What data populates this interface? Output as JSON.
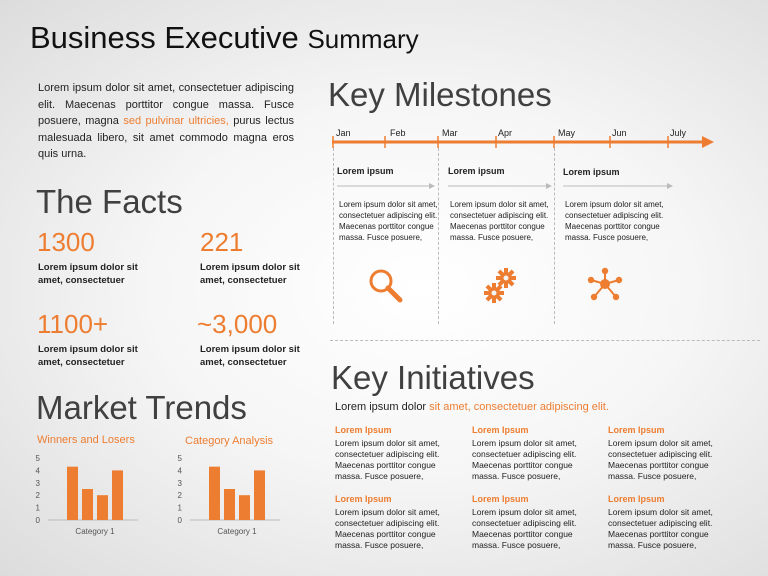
{
  "title": {
    "main": "Business Executive",
    "small": "Summary"
  },
  "intro": {
    "part1": "Lorem ipsum dolor sit amet, consectetuer adipiscing elit. Maecenas porttitor congue massa. Fusce posuere, magna ",
    "highlight": "sed pulvinar ultricies,",
    "part2": " purus lectus malesuada libero, sit amet commodo magna eros quis urna."
  },
  "facts": {
    "heading": "The Facts",
    "items": [
      {
        "value": "1300",
        "text": "Lorem ipsum dolor sit amet, consectetuer"
      },
      {
        "value": "221",
        "text": "Lorem ipsum dolor sit amet, consectetuer"
      },
      {
        "value": "1100+",
        "text": "Lorem ipsum dolor sit amet, consectetuer"
      },
      {
        "value": "~3,000",
        "text": "Lorem ipsum dolor sit amet, consectetuer"
      }
    ]
  },
  "market": {
    "heading": "Market Trends"
  },
  "chart_data": [
    {
      "type": "bar",
      "title": "Winners and Losers",
      "categories": [
        "Category 1"
      ],
      "series": [
        {
          "values": [
            4.3
          ]
        },
        {
          "values": [
            2.5
          ]
        },
        {
          "values": [
            2.0
          ]
        },
        {
          "values": [
            4.0
          ]
        }
      ],
      "xlabel": "Category 1",
      "ylabel": "",
      "ylim": [
        0,
        5
      ],
      "yticks": [
        "0",
        "1",
        "2",
        "3",
        "4",
        "5"
      ],
      "color": "#ED7D31",
      "grid": false
    },
    {
      "type": "bar",
      "title": "Category Analysis",
      "categories": [
        "Category 1"
      ],
      "series": [
        {
          "values": [
            4.3
          ]
        },
        {
          "values": [
            2.5
          ]
        },
        {
          "values": [
            2.0
          ]
        },
        {
          "values": [
            4.0
          ]
        }
      ],
      "xlabel": "Category 1",
      "ylabel": "",
      "ylim": [
        0,
        5
      ],
      "yticks": [
        "0",
        "1",
        "2",
        "3",
        "4",
        "5"
      ],
      "color": "#ED7D31",
      "grid": false
    }
  ],
  "milestones": {
    "heading": "Key Milestones",
    "months": [
      "Jan",
      "Feb",
      "Mar",
      "Apr",
      "May",
      "Jun",
      "July"
    ],
    "items": [
      {
        "head": "Lorem ipsum",
        "body": "Lorem ipsum dolor sit amet, consectetuer adipiscing elit. Maecenas porttitor congue massa. Fusce posuere,",
        "icon": "magnifier-icon"
      },
      {
        "head": "Lorem ipsum",
        "body": "Lorem ipsum dolor sit amet, consectetuer adipiscing elit. Maecenas porttitor congue massa. Fusce posuere,",
        "icon": "gears-icon"
      },
      {
        "head": "Lorem ipsum",
        "body": "Lorem ipsum dolor sit amet, consectetuer adipiscing elit. Maecenas porttitor congue massa. Fusce posuere,",
        "icon": "network-icon"
      }
    ],
    "accent": "#ED7D31"
  },
  "initiatives": {
    "heading": "Key Initiatives",
    "sub_plain": "Lorem ipsum dolor ",
    "sub_highlight": "sit amet, consectetuer adipiscing elit.",
    "items": [
      {
        "head": "Lorem Ipsum",
        "body": "Lorem ipsum dolor sit amet, consectetuer adipiscing elit. Maecenas porttitor congue massa. Fusce posuere,"
      },
      {
        "head": "Lorem Ipsum",
        "body": "Lorem ipsum dolor sit amet, consectetuer adipiscing elit. Maecenas porttitor congue massa. Fusce posuere,"
      },
      {
        "head": "Lorem Ipsum",
        "body": "Lorem ipsum dolor sit amet, consectetuer adipiscing elit. Maecenas porttitor congue massa. Fusce posuere,"
      },
      {
        "head": "Lorem Ipsum",
        "body": "Lorem ipsum dolor sit amet, consectetuer adipiscing elit. Maecenas porttitor congue massa. Fusce posuere,"
      },
      {
        "head": "Lorem Ipsum",
        "body": "Lorem ipsum dolor sit amet, consectetuer adipiscing elit. Maecenas porttitor congue massa. Fusce posuere,"
      },
      {
        "head": "Lorem Ipsum",
        "body": "Lorem ipsum dolor sit amet, consectetuer adipiscing elit. Maecenas porttitor congue massa. Fusce posuere,"
      }
    ]
  }
}
